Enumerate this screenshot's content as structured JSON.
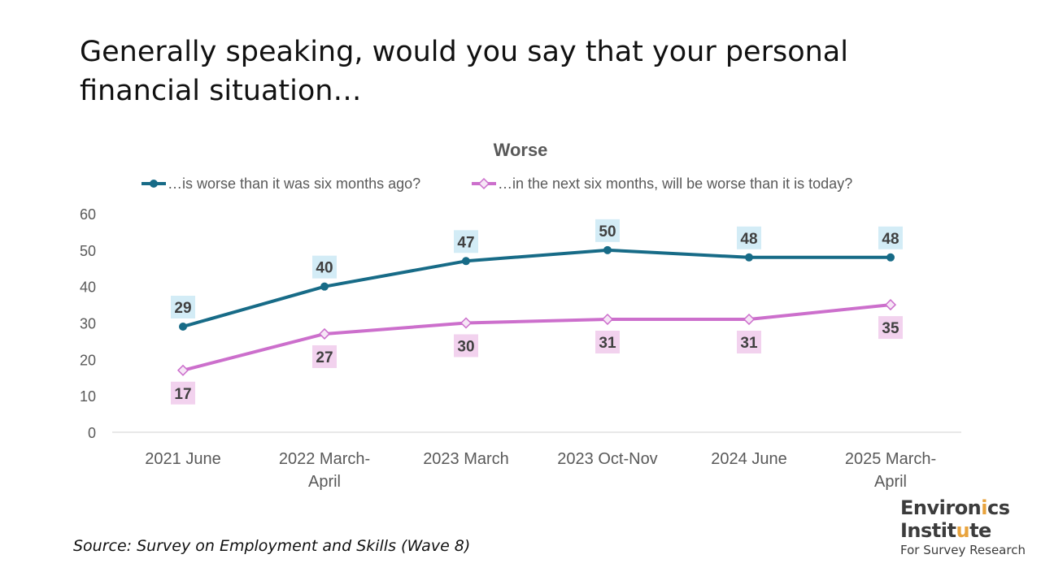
{
  "page": {
    "headline": "Generally speaking, would you say that your personal financial situation…",
    "source": "Source: Survey on Employment and Skills (Wave 8)"
  },
  "logo": {
    "line1_pre": "Environ",
    "line1_accent": "i",
    "line1_post": "cs",
    "line2_pre": "Instit",
    "line2_accent": "u",
    "line2_post": "te",
    "tagline": "For Survey Research",
    "accent_color": "#e8a33d"
  },
  "chart_data": {
    "type": "line",
    "title": "Worse",
    "categories": [
      [
        "2021 June"
      ],
      [
        "2022 March-",
        "April"
      ],
      [
        "2023 March"
      ],
      [
        "2023 Oct-Nov"
      ],
      [
        "2024 June"
      ],
      [
        "2025 March-",
        "April"
      ]
    ],
    "ylim": [
      0,
      60
    ],
    "yticks": [
      0,
      10,
      20,
      30,
      40,
      50,
      60
    ],
    "grid": false,
    "legend_position": "top",
    "series": [
      {
        "name": "…is worse than it was six months ago?",
        "values": [
          29,
          40,
          47,
          50,
          48,
          48
        ],
        "color": "#176b87",
        "label_bg": "#d3ecf6",
        "marker": "circle",
        "label_position": "above"
      },
      {
        "name": "…in the next six months, will be worse than it is today?",
        "values": [
          17,
          27,
          30,
          31,
          31,
          35
        ],
        "color": "#cc6fcc",
        "label_bg": "#f2d2ee",
        "marker": "diamond",
        "label_position": "below"
      }
    ]
  }
}
